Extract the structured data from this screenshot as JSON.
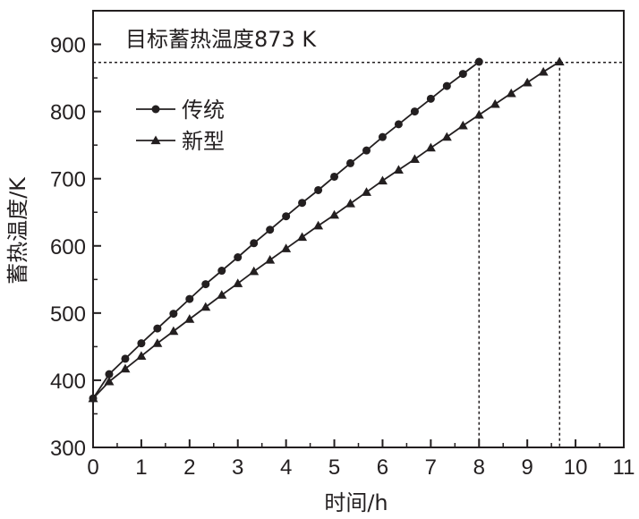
{
  "chart_data": {
    "type": "line",
    "title": "",
    "xlabel": "时间/h",
    "ylabel": "蓄热温度/K",
    "xlim": [
      0,
      11
    ],
    "ylim": [
      300,
      950
    ],
    "x_ticks": [
      "0",
      "1",
      "2",
      "3",
      "4",
      "5",
      "6",
      "7",
      "8",
      "9",
      "10",
      "11"
    ],
    "y_ticks": [
      "300",
      "400",
      "500",
      "600",
      "700",
      "800",
      "900"
    ],
    "grid": false,
    "legend_position": "upper-left",
    "annotation": {
      "text": "目标蓄热温度873 K",
      "target_y": 873,
      "verticals_x": [
        8.0,
        9.67
      ]
    },
    "colors": {
      "line": "#231f20",
      "axis": "#231f20"
    },
    "series": [
      {
        "name": "传统",
        "marker": "circle",
        "x": [
          0,
          0.333,
          0.667,
          1.0,
          1.333,
          1.667,
          2.0,
          2.333,
          2.667,
          3.0,
          3.333,
          3.667,
          4.0,
          4.333,
          4.667,
          5.0,
          5.333,
          5.667,
          6.0,
          6.333,
          6.667,
          7.0,
          7.333,
          7.667,
          8.0
        ],
        "y": [
          373,
          409,
          432,
          455,
          477,
          499,
          521,
          543,
          563,
          583,
          604,
          624,
          644,
          664,
          683,
          703,
          723,
          742,
          762,
          781,
          800,
          819,
          838,
          856,
          874
        ]
      },
      {
        "name": "新型",
        "marker": "triangle",
        "x": [
          0,
          0.333,
          0.667,
          1.0,
          1.333,
          1.667,
          2.0,
          2.333,
          2.667,
          3.0,
          3.333,
          3.667,
          4.0,
          4.333,
          4.667,
          5.0,
          5.333,
          5.667,
          6.0,
          6.333,
          6.667,
          7.0,
          7.333,
          7.667,
          8.0,
          8.333,
          8.667,
          9.0,
          9.333,
          9.667
        ],
        "y": [
          373,
          398,
          417,
          436,
          455,
          473,
          491,
          509,
          527,
          544,
          562,
          579,
          596,
          613,
          630,
          646,
          663,
          680,
          697,
          713,
          729,
          746,
          762,
          779,
          795,
          811,
          827,
          843,
          859,
          874
        ]
      }
    ]
  }
}
